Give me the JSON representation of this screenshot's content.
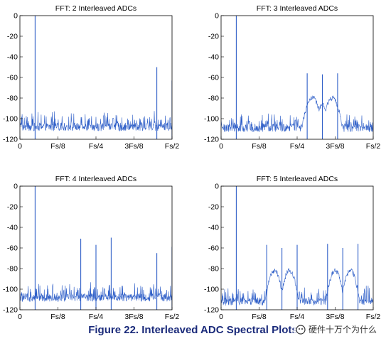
{
  "figure_caption": "Figure 22. Interleaved ADC Spectral Plots",
  "watermark_text": "硬件十万个为什么",
  "colors": {
    "trace": "#2f5fc8",
    "axis": "#000000",
    "caption": "#1a2a7a"
  },
  "chart_data": [
    {
      "type": "line",
      "title": "FFT: 2 Interleaved ADCs",
      "x_tick_labels": [
        "0",
        "Fs/8",
        "Fs/4",
        "3Fs/8",
        "Fs/2"
      ],
      "x_tick_values": [
        0,
        0.125,
        0.25,
        0.375,
        0.5
      ],
      "xlim": [
        0,
        0.5
      ],
      "y_tick_labels": [
        "0",
        "-20",
        "-40",
        "-60",
        "-80",
        "-100",
        "-120"
      ],
      "ylim": [
        -120,
        0
      ],
      "noise_floor_db": -108,
      "spurs": [
        {
          "x": 0.05,
          "db": 0
        },
        {
          "x": 0.45,
          "db": -50
        },
        {
          "x": 0.5,
          "db": -63
        }
      ],
      "humps": []
    },
    {
      "type": "line",
      "title": "FFT: 3 Interleaved ADCs",
      "x_tick_labels": [
        "0",
        "Fs/8",
        "Fs/4",
        "3Fs/8",
        "Fs/2"
      ],
      "x_tick_values": [
        0,
        0.125,
        0.25,
        0.375,
        0.5
      ],
      "xlim": [
        0,
        0.5
      ],
      "y_tick_labels": [
        "0",
        "-20",
        "-40",
        "-60",
        "-80",
        "-100",
        "-120"
      ],
      "ylim": [
        -120,
        0
      ],
      "noise_floor_db": -109,
      "spurs": [
        {
          "x": 0.05,
          "db": 0
        },
        {
          "x": 0.283,
          "db": -56
        },
        {
          "x": 0.333,
          "db": -57
        },
        {
          "x": 0.383,
          "db": -56
        }
      ],
      "humps": [
        {
          "center": 0.3,
          "width": 0.035,
          "db": -80
        },
        {
          "center": 0.365,
          "width": 0.035,
          "db": -80
        },
        {
          "center": 0.333,
          "width": 0.02,
          "db": -85
        }
      ]
    },
    {
      "type": "line",
      "title": "FFT: 4 Interleaved ADCs",
      "x_tick_labels": [
        "0",
        "Fs/8",
        "Fs/4",
        "3Fs/8",
        "Fs/2"
      ],
      "x_tick_values": [
        0,
        0.125,
        0.25,
        0.375,
        0.5
      ],
      "xlim": [
        0,
        0.5
      ],
      "y_tick_labels": [
        "0",
        "-20",
        "-40",
        "-60",
        "-80",
        "-100",
        "-120"
      ],
      "ylim": [
        -120,
        0
      ],
      "noise_floor_db": -108,
      "spurs": [
        {
          "x": 0.05,
          "db": 0
        },
        {
          "x": 0.2,
          "db": -51
        },
        {
          "x": 0.25,
          "db": -57
        },
        {
          "x": 0.3,
          "db": -50
        },
        {
          "x": 0.45,
          "db": -65
        },
        {
          "x": 0.5,
          "db": -59
        }
      ],
      "humps": []
    },
    {
      "type": "line",
      "title": "FFT: 5 Interleaved ADCs",
      "x_tick_labels": [
        "0",
        "Fs/8",
        "Fs/4",
        "3Fs/8",
        "Fs/2"
      ],
      "x_tick_values": [
        0,
        0.125,
        0.25,
        0.375,
        0.5
      ],
      "xlim": [
        0,
        0.5
      ],
      "y_tick_labels": [
        "0",
        "-20",
        "-40",
        "-60",
        "-80",
        "-100",
        "-120"
      ],
      "ylim": [
        -120,
        0
      ],
      "noise_floor_db": -112,
      "spurs": [
        {
          "x": 0.05,
          "db": 0
        },
        {
          "x": 0.15,
          "db": -57
        },
        {
          "x": 0.2,
          "db": -60
        },
        {
          "x": 0.25,
          "db": -57
        },
        {
          "x": 0.35,
          "db": -56
        },
        {
          "x": 0.4,
          "db": -60
        },
        {
          "x": 0.45,
          "db": -56
        }
      ],
      "humps": [
        {
          "center": 0.175,
          "width": 0.03,
          "db": -82
        },
        {
          "center": 0.225,
          "width": 0.03,
          "db": -82
        },
        {
          "center": 0.375,
          "width": 0.03,
          "db": -82
        },
        {
          "center": 0.425,
          "width": 0.03,
          "db": -82
        }
      ]
    }
  ]
}
